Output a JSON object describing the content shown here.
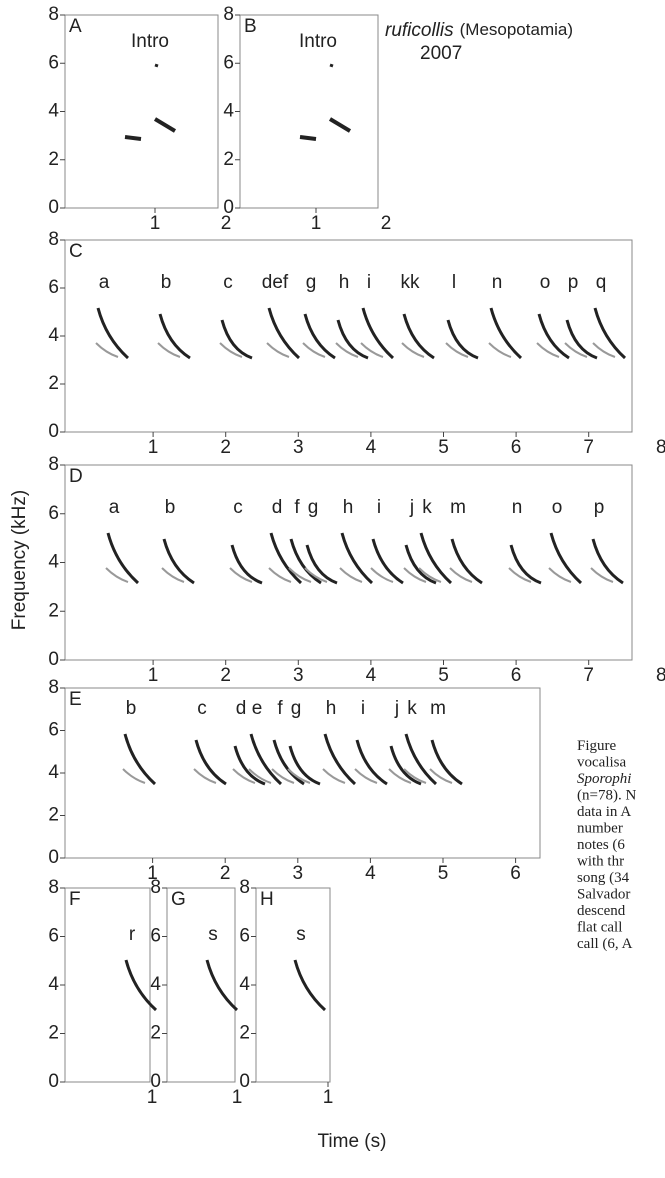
{
  "title": {
    "species": "ruficollis",
    "region": "(Mesopotamia)",
    "year": "2007"
  },
  "y_label": "Frequency (kHz)",
  "x_label": "Time (s)",
  "panels": [
    {
      "label": "A",
      "note": "Intro",
      "x_ticks": [
        1,
        2
      ],
      "y_ticks": [
        0,
        2,
        4,
        6,
        8
      ]
    },
    {
      "label": "B",
      "note": "Intro",
      "x_ticks": [
        1,
        2
      ],
      "y_ticks": [
        0,
        2,
        4,
        6,
        8
      ]
    },
    {
      "label": "C",
      "x_ticks": [
        1,
        2,
        3,
        4,
        5,
        6,
        7,
        8
      ],
      "y_ticks": [
        0,
        2,
        4,
        6,
        8
      ],
      "syllables": [
        "a",
        "b",
        "c",
        "def",
        "g",
        "h",
        "i",
        "kk",
        "l",
        "n",
        "o",
        "p",
        "q"
      ]
    },
    {
      "label": "D",
      "x_ticks": [
        1,
        2,
        3,
        4,
        5,
        6,
        7,
        8
      ],
      "y_ticks": [
        0,
        2,
        4,
        6,
        8
      ],
      "syllables": [
        "a",
        "b",
        "c",
        "d",
        "f",
        "g",
        "h",
        "i",
        "j",
        "k",
        "m",
        "n",
        "o",
        "p"
      ]
    },
    {
      "label": "E",
      "x_ticks": [
        1,
        2,
        3,
        4,
        5,
        6
      ],
      "y_ticks": [
        0,
        2,
        4,
        6,
        8
      ],
      "syllables": [
        "b",
        "c",
        "d",
        "e",
        "f",
        "g",
        "h",
        "i",
        "j",
        "k",
        "m"
      ]
    },
    {
      "label": "F",
      "x_ticks": [
        1
      ],
      "y_ticks": [
        0,
        2,
        4,
        6,
        8
      ],
      "syllables": [
        "r"
      ]
    },
    {
      "label": "G",
      "x_ticks": [
        1
      ],
      "y_ticks": [
        0,
        2,
        4,
        6,
        8
      ],
      "syllables": [
        "s"
      ]
    },
    {
      "label": "H",
      "x_ticks": [
        1
      ],
      "y_ticks": [
        0,
        2,
        4,
        6,
        8
      ],
      "syllables": [
        "s"
      ]
    }
  ],
  "caption_lines": [
    "Figure",
    "vocalisa",
    "Sporophi",
    "(n=78). N",
    "data in A",
    "number",
    "notes (6",
    "with thr",
    "song (34",
    "Salvador",
    "descend",
    "flat call",
    "call (6, A"
  ]
}
